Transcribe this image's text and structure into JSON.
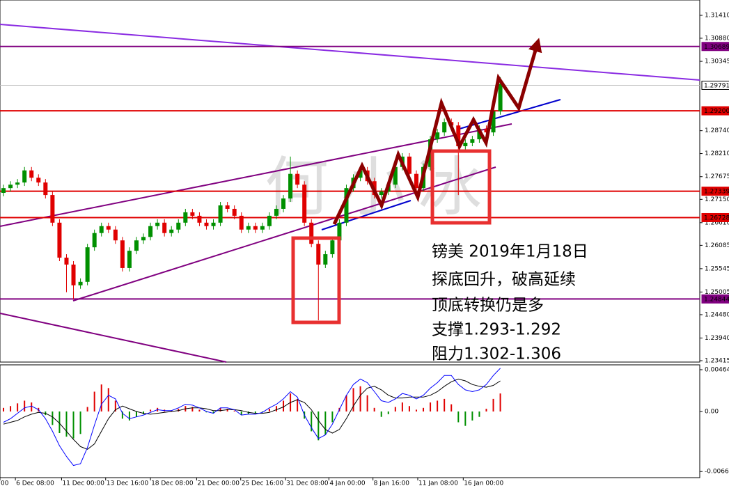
{
  "chart_data": [
    {
      "type": "candlestick",
      "ylim": [
        1.23383,
        1.31765
      ],
      "yticks": [
        {
          "value": 1.3141,
          "label": "1.31410"
        },
        {
          "value": 1.3088,
          "label": "1.30880"
        },
        1.30345,
        {
          "value": 1.2874,
          "label": "1.28740"
        },
        {
          "value": 1.2821,
          "label": "1.28210"
        },
        1.27675,
        {
          "value": 1.2715,
          "label": "1.27150"
        },
        {
          "value": 1.2661,
          "label": "1.26610"
        },
        1.26085,
        1.25545,
        1.25005,
        {
          "value": 1.2448,
          "label": "1.24480"
        },
        {
          "value": 1.2394,
          "label": "1.23940"
        },
        1.23415
      ],
      "levels": [
        {
          "value": 1.30689,
          "color": "#800080"
        },
        {
          "value": 1.29791,
          "color": "#c0c0c0"
        },
        {
          "value": 1.292,
          "label": "1.29200",
          "color": "#e00000"
        },
        {
          "value": 1.27339,
          "color": "#e00000"
        },
        {
          "value": 1.26728,
          "color": "#e00000"
        },
        {
          "value": 1.24844,
          "color": "#800080"
        }
      ],
      "up_color": "#009000",
      "down_color": "#e00000",
      "open": [
        1.273,
        1.2741,
        1.2749,
        1.2754,
        1.2782,
        1.2765,
        1.2754,
        1.2725,
        1.2661,
        1.258,
        1.2564,
        1.2516,
        1.2524,
        1.2604,
        1.2637,
        1.2653,
        1.2645,
        1.262,
        1.2556,
        1.2596,
        1.262,
        1.2628,
        1.2653,
        1.2661,
        1.2637,
        1.2645,
        1.2661,
        1.2685,
        1.2677,
        1.2661,
        1.2653,
        1.2661,
        1.2701,
        1.2693,
        1.2677,
        1.2645,
        1.2653,
        1.2645,
        1.2653,
        1.2677,
        1.2693,
        1.2717,
        1.2774,
        1.2749,
        1.2661,
        1.2612,
        1.2564,
        1.2588,
        1.262,
        1.2661,
        1.2741,
        1.2765,
        1.2782,
        1.2757,
        1.2725,
        1.2733,
        1.2749,
        1.279,
        1.2814,
        1.2774,
        1.2741,
        1.279,
        1.2854,
        1.287,
        1.2894,
        1.2886,
        1.2838,
        1.2846,
        1.2854,
        1.2878,
        1.287,
        1.2919
      ],
      "high": [
        1.2749,
        1.2757,
        1.2762,
        1.279,
        1.279,
        1.2773,
        1.2762,
        1.2733,
        1.2669,
        1.2588,
        1.2572,
        1.2532,
        1.2612,
        1.2645,
        1.2661,
        1.2661,
        1.2653,
        1.2628,
        1.2604,
        1.2628,
        1.2636,
        1.2661,
        1.2669,
        1.2669,
        1.2653,
        1.2669,
        1.2693,
        1.2693,
        1.2685,
        1.2669,
        1.2669,
        1.2709,
        1.2709,
        1.2701,
        1.2685,
        1.2661,
        1.2661,
        1.2661,
        1.2685,
        1.2701,
        1.2725,
        1.2814,
        1.2782,
        1.2757,
        1.2669,
        1.262,
        1.2596,
        1.2628,
        1.2669,
        1.2749,
        1.2773,
        1.279,
        1.279,
        1.2765,
        1.2741,
        1.2757,
        1.2798,
        1.2822,
        1.2822,
        1.2782,
        1.2798,
        1.2862,
        1.2878,
        1.2902,
        1.2902,
        1.2894,
        1.2854,
        1.2862,
        1.2886,
        1.2886,
        1.2927,
        1.2998
      ],
      "low": [
        1.2722,
        1.2733,
        1.2741,
        1.2746,
        1.2757,
        1.2746,
        1.2717,
        1.2653,
        1.2572,
        1.25,
        1.2484,
        1.2508,
        1.2516,
        1.2596,
        1.2629,
        1.2637,
        1.2612,
        1.2548,
        1.2548,
        1.2588,
        1.2612,
        1.262,
        1.2645,
        1.2629,
        1.2629,
        1.2637,
        1.2653,
        1.2669,
        1.2653,
        1.2645,
        1.2645,
        1.2653,
        1.2685,
        1.2669,
        1.2637,
        1.2637,
        1.2637,
        1.2637,
        1.2645,
        1.2669,
        1.2685,
        1.2709,
        1.2741,
        1.2653,
        1.2604,
        1.2435,
        1.2556,
        1.258,
        1.2612,
        1.2653,
        1.2733,
        1.2757,
        1.2749,
        1.2717,
        1.2717,
        1.2725,
        1.2741,
        1.2782,
        1.2766,
        1.2733,
        1.2733,
        1.2782,
        1.2846,
        1.2862,
        1.2878,
        1.2725,
        1.283,
        1.2838,
        1.2846,
        1.2862,
        1.2862,
        1.2911
      ],
      "close": [
        1.2741,
        1.2749,
        1.2754,
        1.2782,
        1.2765,
        1.2754,
        1.2725,
        1.2661,
        1.258,
        1.2564,
        1.2516,
        1.2524,
        1.2604,
        1.2637,
        1.2653,
        1.2645,
        1.262,
        1.2556,
        1.2596,
        1.262,
        1.2628,
        1.2653,
        1.2661,
        1.2637,
        1.2645,
        1.2661,
        1.2685,
        1.2677,
        1.2661,
        1.2653,
        1.2661,
        1.2701,
        1.2693,
        1.2677,
        1.2645,
        1.2653,
        1.2645,
        1.2653,
        1.2677,
        1.2693,
        1.2717,
        1.2774,
        1.2749,
        1.2661,
        1.2612,
        1.2564,
        1.2588,
        1.262,
        1.2661,
        1.2741,
        1.2765,
        1.2782,
        1.2757,
        1.2725,
        1.2733,
        1.2749,
        1.279,
        1.2814,
        1.2774,
        1.2741,
        1.279,
        1.2854,
        1.287,
        1.2894,
        1.2886,
        1.2838,
        1.2846,
        1.2854,
        1.2878,
        1.287,
        1.2919,
        1.2983
      ],
      "watermark": "何小冰",
      "annotations": [
        "镑美  2019年1月18日",
        "探底回升，破高延续",
        "顶底转换仍是多",
        "支撑1.293-1.292",
        "阻力1.302-1.306"
      ]
    },
    {
      "type": "macd",
      "ylim": [
        -0.00735,
        0.00518
      ],
      "yticks": [
        0.00464,
        {
          "value": 0,
          "label": "0.00"
        },
        -0.00667
      ],
      "xlim": [
        0,
        100
      ],
      "xticks": [
        {
          "value": 0,
          "label": "00"
        },
        {
          "value": 2.2,
          "label": "6 Dec 08:00"
        },
        {
          "value": 8.8,
          "label": "11 Dec 00:00"
        },
        {
          "value": 15.1,
          "label": "13 Dec 16:00"
        },
        {
          "value": 21.5,
          "label": "18 Dec 08:00"
        },
        {
          "value": 28.1,
          "label": "21 Dec 00:00"
        },
        {
          "value": 34.4,
          "label": "25 Dec 16:00"
        },
        {
          "value": 40.8,
          "label": "31 Dec 08:00"
        },
        {
          "value": 47,
          "label": "4 Jan 00:00"
        },
        {
          "value": 53.3,
          "label": "8 Jan 16:00"
        },
        {
          "value": 59.7,
          "label": "11 Jan 08:00"
        },
        {
          "value": 66.2,
          "label": "16 Jan 00:00"
        }
      ],
      "pos_color": "#e00000",
      "neg_color": "#009000",
      "macd_color": "#0000ff",
      "signal_color": "#000000",
      "histogram": [
        0.0004,
        0.0006,
        0.0009,
        0.0012,
        0.001,
        0.0004,
        -0.0004,
        -0.0015,
        -0.0024,
        -0.0028,
        -0.003,
        -0.0025,
        0.0005,
        0.0022,
        0.003,
        0.0026,
        0.0012,
        -0.0008,
        -0.001,
        -0.0006,
        -0.0003,
        0.0002,
        0.0004,
        0.0002,
        0.0001,
        0.0003,
        0.0006,
        0.0005,
        0.0002,
        -0.0001,
        -0.0002,
        0.0004,
        0.0003,
        0.0001,
        -0.0004,
        -0.0003,
        -0.0002,
        -0.0001,
        0.0003,
        0.0006,
        0.0012,
        0.002,
        0.0014,
        -0.0008,
        -0.0022,
        -0.0032,
        -0.0026,
        -0.0012,
        0.0004,
        0.0018,
        0.0026,
        0.0028,
        0.0018,
        0.0004,
        -0.0006,
        -0.0003,
        0.0005,
        0.001,
        0.0006,
        0.0002,
        0.0004,
        0.001,
        0.0012,
        0.0014,
        0.0008,
        -0.0012,
        -0.0016,
        -0.001,
        -0.0006,
        0.0003,
        0.0014,
        0.002
      ],
      "macd": [
        -0.0012,
        -0.0008,
        -0.0002,
        0.0004,
        0.0006,
        0.0002,
        -0.0008,
        -0.0022,
        -0.0038,
        -0.005,
        -0.006,
        -0.0058,
        -0.004,
        -0.0015,
        0.0008,
        0.0018,
        0.0014,
        -0.0002,
        -0.0008,
        -0.0006,
        -0.0004,
        -0.0001,
        0.0002,
        0.0001,
        0.0001,
        0.0004,
        0.0008,
        0.0007,
        0.0004,
        0.0,
        -0.0002,
        0.0004,
        0.0004,
        0.0002,
        -0.0004,
        -0.0003,
        -0.0003,
        -0.0001,
        0.0004,
        0.0008,
        0.0014,
        0.0022,
        0.0016,
        -0.0004,
        -0.0018,
        -0.003,
        -0.0026,
        -0.0014,
        0.0002,
        0.0018,
        0.003,
        0.0036,
        0.0032,
        0.0022,
        0.0012,
        0.001,
        0.0014,
        0.002,
        0.0018,
        0.0014,
        0.0018,
        0.0026,
        0.0032,
        0.004,
        0.004,
        0.003,
        0.0024,
        0.0022,
        0.0024,
        0.003,
        0.004,
        0.0048
      ],
      "signal": [
        -0.0014,
        -0.0012,
        -0.001,
        -0.0006,
        -0.0003,
        -0.0001,
        -0.0002,
        -0.0006,
        -0.0013,
        -0.0022,
        -0.0031,
        -0.0039,
        -0.0042,
        -0.0036,
        -0.0022,
        -0.0008,
        0.0002,
        0.0006,
        0.0003,
        0.0,
        -0.0002,
        -0.0003,
        -0.0002,
        -0.0001,
        0.0,
        0.0001,
        0.0003,
        0.0004,
        0.0004,
        0.0003,
        0.0001,
        0.0001,
        0.0002,
        0.0002,
        0.0001,
        -0.0001,
        -0.0002,
        -0.0002,
        -0.0001,
        0.0002,
        0.0005,
        0.001,
        0.0013,
        0.001,
        0.0002,
        -0.001,
        -0.002,
        -0.0024,
        -0.002,
        -0.0008,
        0.0006,
        0.0018,
        0.0026,
        0.0028,
        0.0024,
        0.0018,
        0.0015,
        0.0015,
        0.0016,
        0.0016,
        0.0016,
        0.0018,
        0.0022,
        0.0028,
        0.0033,
        0.0036,
        0.0034,
        0.003,
        0.0028,
        0.0027,
        0.0029,
        0.0034
      ]
    }
  ]
}
